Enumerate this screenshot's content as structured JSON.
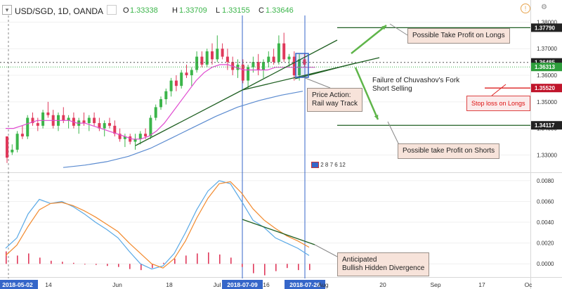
{
  "header": {
    "symbol": "USD/SGD, 1D, OANDA",
    "open_label": "O",
    "open": "1.33338",
    "high_label": "H",
    "high": "1.33709",
    "low_label": "L",
    "low": "1.33155",
    "close_label": "C",
    "close": "1.33646"
  },
  "chart_data": [
    {
      "type": "candlestick",
      "panel": "price",
      "x_ticks": [
        "2018-05-02",
        "14",
        "Jun",
        "18",
        "Jul",
        "2018-07-09",
        "16",
        "2018-07-26",
        "Aug",
        "20",
        "Sep",
        "17",
        "Oc"
      ],
      "highlighted_dates": [
        "2018-05-02",
        "2018-07-09",
        "2018-07-26"
      ],
      "y_ticks": [
        "1.38000",
        "1.37000",
        "1.36000",
        "1.35000",
        "1.34000",
        "1.33000"
      ],
      "ylim": [
        1.3235,
        1.3825
      ],
      "price_labels": [
        {
          "value": "1.37790",
          "style": "dark"
        },
        {
          "value": "1.36485",
          "style": "dark"
        },
        {
          "value": "1.36313",
          "style": "green"
        },
        {
          "value": "1.35520",
          "style": "red"
        },
        {
          "value": "1.34117",
          "style": "dark"
        }
      ],
      "levels": {
        "tp_longs": 1.3779,
        "current": 1.36485,
        "stop_loss": 1.3552,
        "tp_shorts": 1.34117
      },
      "candles_ohlc_approx": [
        [
          1.337,
          1.333,
          1.327,
          1.329
        ],
        [
          1.331,
          1.334,
          1.33,
          1.332
        ],
        [
          1.332,
          1.339,
          1.331,
          1.338
        ],
        [
          1.338,
          1.341,
          1.336,
          1.337
        ],
        [
          1.337,
          1.345,
          1.336,
          1.344
        ],
        [
          1.344,
          1.346,
          1.341,
          1.342
        ],
        [
          1.342,
          1.344,
          1.339,
          1.341
        ],
        [
          1.341,
          1.347,
          1.34,
          1.346
        ],
        [
          1.346,
          1.35,
          1.344,
          1.345
        ],
        [
          1.345,
          1.347,
          1.34,
          1.341
        ],
        [
          1.341,
          1.346,
          1.339,
          1.345
        ],
        [
          1.345,
          1.348,
          1.342,
          1.343
        ],
        [
          1.343,
          1.345,
          1.34,
          1.344
        ],
        [
          1.344,
          1.346,
          1.34,
          1.341
        ],
        [
          1.341,
          1.344,
          1.338,
          1.343
        ],
        [
          1.343,
          1.346,
          1.341,
          1.342
        ],
        [
          1.342,
          1.345,
          1.339,
          1.344
        ],
        [
          1.344,
          1.346,
          1.341,
          1.342
        ],
        [
          1.342,
          1.344,
          1.339,
          1.34
        ],
        [
          1.34,
          1.343,
          1.337,
          1.342
        ],
        [
          1.342,
          1.344,
          1.34,
          1.341
        ],
        [
          1.341,
          1.343,
          1.337,
          1.338
        ],
        [
          1.338,
          1.34,
          1.335,
          1.336
        ],
        [
          1.336,
          1.338,
          1.333,
          1.337
        ],
        [
          1.337,
          1.338,
          1.334,
          1.335
        ],
        [
          1.335,
          1.338,
          1.332,
          1.336
        ],
        [
          1.336,
          1.339,
          1.334,
          1.338
        ],
        [
          1.338,
          1.34,
          1.336,
          1.337
        ],
        [
          1.337,
          1.345,
          1.336,
          1.344
        ],
        [
          1.344,
          1.349,
          1.343,
          1.348
        ],
        [
          1.348,
          1.352,
          1.347,
          1.351
        ],
        [
          1.351,
          1.355,
          1.349,
          1.354
        ],
        [
          1.354,
          1.359,
          1.352,
          1.358
        ],
        [
          1.358,
          1.36,
          1.354,
          1.356
        ],
        [
          1.356,
          1.362,
          1.355,
          1.361
        ],
        [
          1.361,
          1.364,
          1.359,
          1.36
        ],
        [
          1.36,
          1.363,
          1.356,
          1.362
        ],
        [
          1.362,
          1.369,
          1.361,
          1.367
        ],
        [
          1.367,
          1.369,
          1.363,
          1.364
        ],
        [
          1.364,
          1.37,
          1.363,
          1.369
        ],
        [
          1.369,
          1.372,
          1.364,
          1.366
        ],
        [
          1.366,
          1.375,
          1.365,
          1.37
        ],
        [
          1.37,
          1.372,
          1.366,
          1.367
        ],
        [
          1.367,
          1.37,
          1.362,
          1.365
        ],
        [
          1.365,
          1.367,
          1.36,
          1.362
        ],
        [
          1.362,
          1.366,
          1.359,
          1.364
        ],
        [
          1.364,
          1.366,
          1.357,
          1.358
        ],
        [
          1.358,
          1.364,
          1.355,
          1.363
        ],
        [
          1.363,
          1.367,
          1.361,
          1.365
        ],
        [
          1.365,
          1.368,
          1.36,
          1.362
        ],
        [
          1.362,
          1.366,
          1.359,
          1.365
        ],
        [
          1.365,
          1.369,
          1.363,
          1.367
        ],
        [
          1.367,
          1.37,
          1.364,
          1.365
        ],
        [
          1.365,
          1.375,
          1.364,
          1.372
        ],
        [
          1.372,
          1.376,
          1.365,
          1.366
        ],
        [
          1.366,
          1.368,
          1.363,
          1.367
        ],
        [
          1.367,
          1.369,
          1.358,
          1.36
        ],
        [
          1.36,
          1.368,
          1.358,
          1.366
        ],
        [
          1.366,
          1.368,
          1.363,
          1.364
        ]
      ],
      "ma_fast": [
        1.34,
        1.34,
        1.341,
        1.342,
        1.343,
        1.343,
        1.343,
        1.343,
        1.343,
        1.342,
        1.342,
        1.341,
        1.34,
        1.339,
        1.338,
        1.337,
        1.336,
        1.336,
        1.337,
        1.339,
        1.342,
        1.346,
        1.35,
        1.354,
        1.358,
        1.361,
        1.363,
        1.364,
        1.364,
        1.363,
        1.362,
        1.362,
        1.362,
        1.362,
        1.363,
        1.363,
        1.363,
        1.363,
        1.363,
        1.363
      ],
      "ma_slow": [
        1.3253,
        1.3262,
        1.3275,
        1.3295,
        1.3325,
        1.3365,
        1.3405,
        1.3445,
        1.348,
        1.3505,
        1.3525,
        1.354
      ]
    },
    {
      "type": "line",
      "panel": "oscillator",
      "y_ticks": [
        "0.0080",
        "0.0060",
        "0.0040",
        "0.0020",
        "0.0000"
      ],
      "ylim": [
        -0.0012,
        0.0086
      ],
      "series": [
        {
          "color": "#5aa9e6",
          "values": [
            0.0015,
            0.0025,
            0.0048,
            0.0062,
            0.0058,
            0.006,
            0.0055,
            0.0048,
            0.004,
            0.0033,
            0.0025,
            0.0012,
            0.0,
            -0.0005,
            -0.0002,
            0.001,
            0.003,
            0.0052,
            0.007,
            0.008,
            0.0077,
            0.006,
            0.0042,
            0.0035,
            0.0025,
            0.002,
            0.0015,
            0.0008
          ]
        },
        {
          "color": "#f28a2e",
          "values": [
            0.0008,
            0.0018,
            0.0036,
            0.0052,
            0.0058,
            0.0059,
            0.0056,
            0.0051,
            0.0045,
            0.0038,
            0.0031,
            0.002,
            0.001,
            0.0,
            -0.0004,
            0.0005,
            0.0022,
            0.0044,
            0.0063,
            0.0077,
            0.0079,
            0.0068,
            0.0053,
            0.0042,
            0.0034,
            0.0027,
            0.0022,
            0.0016
          ]
        }
      ],
      "histogram": [
        0.0012,
        0.0008,
        0.001,
        0.0006,
        0.0003,
        0.0002,
        0.0001,
        0.0,
        -0.0001,
        -0.0002,
        -0.0003,
        -0.0005,
        -0.0006,
        -0.0004,
        0.0001,
        0.0005,
        0.0008,
        0.001,
        0.0011,
        0.0009,
        0.0006,
        -0.0003,
        -0.0009,
        -0.0011,
        -0.0007,
        -0.0004,
        -0.0006,
        -0.0006
      ]
    }
  ],
  "annotations": {
    "tp_longs": "Possible Take Profit on Longs",
    "rail_track_line1": "Price Action:",
    "rail_track_line2": "Rail way Track",
    "fork_line1": "Failure of Chuvashov's Fork",
    "fork_line2": "Short Selling",
    "stop_loss": "Stop loss on Longs",
    "tp_shorts": "Possible take Profit on Shorts",
    "divergence_line1": "Anticipated",
    "divergence_line2": "Bullish Hidden Divergence",
    "event_marker": "2 8 7 6 12"
  },
  "colors": {
    "bull": "#3bb54a",
    "bear": "#e0395b",
    "ma_fast": "#e04ad0",
    "ma_slow": "#5b8bd0",
    "trend_line": "#1f5f22",
    "arrow": "#5fb54a",
    "highlight_line": "#3566c9"
  }
}
